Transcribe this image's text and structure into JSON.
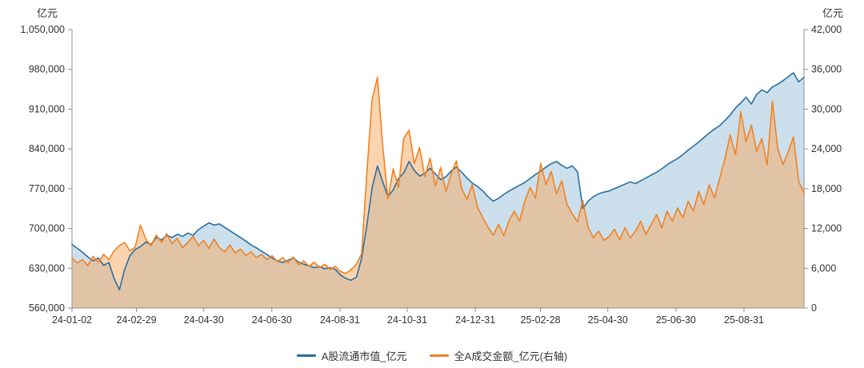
{
  "chart_data": {
    "type": "line",
    "title": "",
    "grid": false,
    "legend_position": "bottom",
    "left_axis": {
      "unit": "亿元",
      "min": 560000,
      "max": 1050000,
      "ticks": [
        {
          "label": "1,050,000",
          "value": 1050000
        },
        {
          "label": "980,000",
          "value": 980000
        },
        {
          "label": "910,000",
          "value": 910000
        },
        {
          "label": "840,000",
          "value": 840000
        },
        {
          "label": "770,000",
          "value": 770000
        },
        {
          "label": "700,000",
          "value": 700000
        },
        {
          "label": "630,000",
          "value": 630000
        },
        {
          "label": "560,000",
          "value": 560000
        }
      ]
    },
    "right_axis": {
      "unit": "亿元",
      "min": 0,
      "max": 42000,
      "ticks": [
        {
          "label": "42,000",
          "value": 42000
        },
        {
          "label": "36,000",
          "value": 36000
        },
        {
          "label": "30,000",
          "value": 30000
        },
        {
          "label": "24,000",
          "value": 24000
        },
        {
          "label": "18,000",
          "value": 18000
        },
        {
          "label": "12,000",
          "value": 12000
        },
        {
          "label": "6,000",
          "value": 6000
        },
        {
          "label": "0",
          "value": 0
        }
      ]
    },
    "x_ticks": [
      {
        "label": "24-01-02",
        "pos": 0.0
      },
      {
        "label": "24-02-29",
        "pos": 0.088
      },
      {
        "label": "24-04-30",
        "pos": 0.18
      },
      {
        "label": "24-06-30",
        "pos": 0.273
      },
      {
        "label": "24-08-31",
        "pos": 0.366
      },
      {
        "label": "24-10-31",
        "pos": 0.458
      },
      {
        "label": "24-12-31",
        "pos": 0.551
      },
      {
        "label": "25-02-28",
        "pos": 0.64
      },
      {
        "label": "25-04-30",
        "pos": 0.732
      },
      {
        "label": "25-06-30",
        "pos": 0.825
      },
      {
        "label": "25-08-31",
        "pos": 0.918
      }
    ],
    "series": [
      {
        "name": "A股流通市值_亿元",
        "axis": "left",
        "color": "#2b6f9f",
        "fill": "rgba(140,185,215,0.45)",
        "values": [
          672000,
          665000,
          658000,
          650000,
          643000,
          648000,
          635000,
          640000,
          612000,
          592000,
          628000,
          652000,
          663000,
          668000,
          676000,
          672000,
          684000,
          680000,
          688000,
          684000,
          690000,
          686000,
          692000,
          688000,
          698000,
          704000,
          710000,
          706000,
          708000,
          702000,
          696000,
          690000,
          684000,
          678000,
          671000,
          666000,
          660000,
          654000,
          648000,
          643000,
          640000,
          644000,
          648000,
          641000,
          637000,
          634000,
          631000,
          633000,
          629000,
          631000,
          628000,
          618000,
          612000,
          609000,
          614000,
          648000,
          706000,
          772000,
          810000,
          782000,
          756000,
          768000,
          788000,
          798000,
          818000,
          802000,
          792000,
          797000,
          806000,
          796000,
          786000,
          791000,
          801000,
          808000,
          799000,
          789000,
          780000,
          774000,
          766000,
          756000,
          748000,
          753000,
          760000,
          766000,
          771000,
          776000,
          781000,
          788000,
          795000,
          801000,
          808000,
          814000,
          818000,
          811000,
          806000,
          810000,
          800000,
          735000,
          748000,
          756000,
          761000,
          764000,
          766000,
          770000,
          774000,
          778000,
          782000,
          779000,
          784000,
          789000,
          794000,
          799000,
          805000,
          812000,
          818000,
          823000,
          830000,
          838000,
          845000,
          852000,
          860000,
          868000,
          875000,
          881000,
          890000,
          900000,
          912000,
          921000,
          931000,
          919000,
          936000,
          944000,
          939000,
          949000,
          954000,
          960000,
          967000,
          974000,
          958000,
          966000
        ]
      },
      {
        "name": "全A成交金额_亿元(右轴)",
        "axis": "right",
        "color": "#f28120",
        "fill": "rgba(247,170,95,0.5)",
        "values": [
          7500,
          6800,
          7300,
          6400,
          7800,
          6900,
          8100,
          7300,
          8600,
          9400,
          9900,
          8600,
          9200,
          12500,
          10400,
          9400,
          11000,
          9900,
          11200,
          9700,
          10500,
          9100,
          9900,
          10800,
          9400,
          10200,
          9000,
          10400,
          9100,
          8500,
          9500,
          8300,
          8900,
          7900,
          8500,
          7600,
          8100,
          7300,
          7900,
          7000,
          7600,
          6800,
          7700,
          6500,
          7100,
          6300,
          6900,
          6100,
          6600,
          5800,
          6300,
          5500,
          5200,
          5800,
          6600,
          8200,
          20500,
          31500,
          34800,
          24500,
          16500,
          21000,
          18200,
          25600,
          26800,
          21800,
          24200,
          19800,
          22600,
          18400,
          21200,
          17600,
          20200,
          22200,
          18000,
          16400,
          18600,
          15200,
          13600,
          12200,
          11000,
          12600,
          10900,
          13200,
          14600,
          13100,
          16200,
          18200,
          16600,
          21800,
          18600,
          20600,
          17200,
          19200,
          15600,
          14200,
          13000,
          16200,
          12200,
          10600,
          11600,
          10200,
          10800,
          11900,
          10300,
          12100,
          10600,
          11600,
          13100,
          11100,
          12600,
          14100,
          12100,
          14600,
          13100,
          15100,
          13600,
          16100,
          14600,
          17600,
          15600,
          18600,
          16600,
          19600,
          22600,
          26100,
          23100,
          29600,
          25100,
          27600,
          23600,
          25600,
          21600,
          31200,
          24100,
          21600,
          23600,
          25800,
          19100,
          17300
        ]
      }
    ]
  }
}
